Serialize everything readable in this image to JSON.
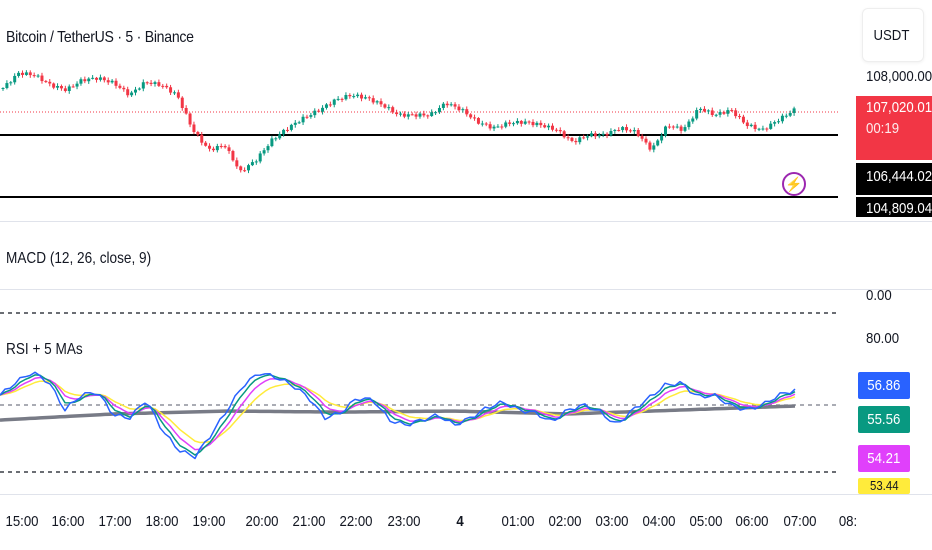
{
  "header": {
    "symbol_title": "Bitcoin / TetherUS · 5 · Binance"
  },
  "price_axis": {
    "currency": "USDT",
    "tick_label": "108,000.00",
    "last_price": "107,020.01",
    "countdown": "00:19",
    "level_1": "106,444.02",
    "level_2": "104,809.04"
  },
  "macd": {
    "title": "MACD (12, 26, close, 9)",
    "zero_label": "0.00"
  },
  "rsi": {
    "title": "RSI + 5 MAs",
    "upper_label": "80.00",
    "values": [
      {
        "label": "56.86",
        "color": "#2962ff"
      },
      {
        "label": "55.56",
        "color": "#089981"
      },
      {
        "label": "54.21",
        "color": "#e040fb"
      },
      {
        "label": "53.44",
        "color": "#ffeb3b"
      }
    ]
  },
  "time_axis": [
    "15:00",
    "16:00",
    "17:00",
    "18:00",
    "19:00",
    "20:00",
    "21:00",
    "22:00",
    "23:00",
    "4",
    "01:00",
    "02:00",
    "03:00",
    "04:00",
    "05:00",
    "06:00",
    "07:00",
    "08:"
  ],
  "colors": {
    "up": "#089981",
    "down": "#f23645",
    "last_price": "#f23645",
    "level": "#000000",
    "ma_long": "#787b86",
    "alert": "#9c27b0"
  },
  "icons": {
    "alert": "lightning-icon"
  },
  "chart_data": [
    {
      "type": "candlestick",
      "title": "Bitcoin / TetherUS · 5 · Binance",
      "approx_closes": [
        107376,
        107599,
        107569,
        107421,
        107347,
        107495,
        107525,
        107451,
        107272,
        107465,
        107421,
        107272,
        106753,
        106456,
        106530,
        106129,
        106307,
        106604,
        106782,
        106931,
        107050,
        107198,
        107272,
        107228,
        107124,
        106975,
        106975,
        106975,
        107154,
        107050,
        106871,
        106782,
        106857,
        106871,
        106827,
        106753,
        106574,
        106678,
        106678,
        106782,
        106723,
        106456,
        106827,
        106753,
        107079,
        106975,
        107050,
        106827,
        106753,
        106901,
        107050
      ],
      "last_price": 107020.01,
      "horizontal_levels": [
        106444.02,
        104809.04
      ]
    },
    {
      "type": "line",
      "title": "RSI + 5 MAs",
      "rsi": [
        49.0,
        54.0,
        57.7,
        54.0,
        43.4,
        49.0,
        50.2,
        41.5,
        40.4,
        47.2,
        35.8,
        28.3,
        25.7,
        34.0,
        43.4,
        52.8,
        57.4,
        55.8,
        52.8,
        48.3,
        40.4,
        42.3,
        47.9,
        47.2,
        39.6,
        37.7,
        39.6,
        41.5,
        37.7,
        40.4,
        44.2,
        46.4,
        43.4,
        42.3,
        38.9,
        43.4,
        45.3,
        42.6,
        37.7,
        43.4,
        47.9,
        52.8,
        53.6,
        48.3,
        49.0,
        45.3,
        43.4,
        45.3,
        49.0,
        50.9
      ],
      "long_ma": [
        39.6,
        41.9,
        43.0,
        42.6,
        43.0,
        41.9,
        43.4,
        44.9
      ],
      "levels": [
        80,
        20
      ]
    }
  ]
}
